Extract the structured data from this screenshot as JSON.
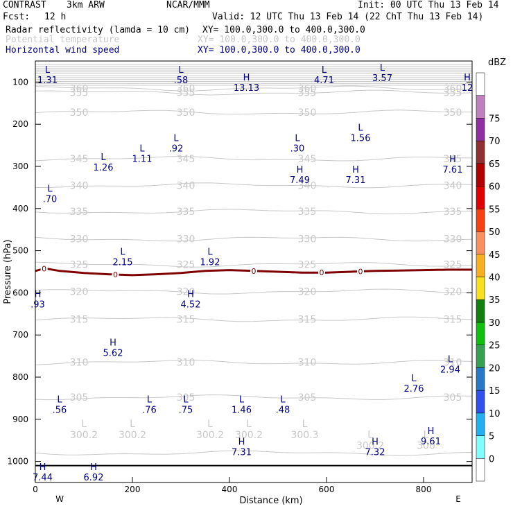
{
  "header": {
    "model": "CONTRAST",
    "resolution": "3km ARW",
    "org": "NCAR/MMM",
    "init": "Init: 00 UTC Thu 13 Feb 14",
    "fcst_label": "Fcst:",
    "fcst_hours": "12 h",
    "valid": "Valid: 12 UTC Thu 13 Feb 14 (22 ChT Thu 13 Feb 14)",
    "field1": "Radar reflectivity (lamda = 10 cm)",
    "field1_xy": "XY= 100.0,300.0 to 400.0,300.0",
    "field2": "Potential temperature",
    "field2_xy": "XY= 100.0,300.0 to 400.0,300.0",
    "field3": "Horizontal wind speed",
    "field3_xy": "XY= 100.0,300.0 to 400.0,300.0"
  },
  "colors": {
    "navy": "#000080",
    "theta": "#c8c8c8",
    "freezing": "#800000",
    "ground": "#000000"
  },
  "chart_data": {
    "type": "cross-section",
    "xlabel": "Distance (km)",
    "ylabel": "Pressure (hPa)",
    "xlim": [
      0,
      900
    ],
    "ylim": [
      1050,
      50
    ],
    "x_ticks": [
      0,
      200,
      400,
      600,
      800
    ],
    "y_ticks": [
      100,
      200,
      300,
      400,
      500,
      600,
      700,
      800,
      900,
      1000
    ],
    "west_label": "W",
    "east_label": "E",
    "theta_contours": [
      {
        "value": 300,
        "pressure": 980
      },
      {
        "value": 305,
        "pressure": 848,
        "label": "305"
      },
      {
        "value": 310,
        "pressure": 765,
        "label": "310"
      },
      {
        "value": 315,
        "pressure": 663,
        "label": "315"
      },
      {
        "value": 320,
        "pressure": 597,
        "label": "320"
      },
      {
        "value": 325,
        "pressure": 533,
        "label": "325"
      },
      {
        "value": 330,
        "pressure": 472,
        "label": "330"
      },
      {
        "value": 335,
        "pressure": 407,
        "label": "335"
      },
      {
        "value": 340,
        "pressure": 345,
        "label": "340"
      },
      {
        "value": 345,
        "pressure": 282,
        "label": "345"
      },
      {
        "value": 350,
        "pressure": 172,
        "label": "350"
      },
      {
        "value": 355,
        "pressure": 125,
        "label": "355"
      },
      {
        "value": 360,
        "pressure": 115,
        "label": "360"
      }
    ],
    "theta_surface_labels": [
      {
        "x": 100,
        "pressure": 935,
        "letter": "L",
        "value": "300.2"
      },
      {
        "x": 200,
        "pressure": 935,
        "letter": "L",
        "value": "300.2"
      },
      {
        "x": 360,
        "pressure": 935,
        "letter": "L",
        "value": "300.2"
      },
      {
        "x": 440,
        "pressure": 935,
        "letter": "L",
        "value": "300.2"
      },
      {
        "x": 555,
        "pressure": 935,
        "letter": "L",
        "value": "300.3"
      },
      {
        "x": 690,
        "pressure": 960,
        "letter": "L",
        "value": "300.2"
      },
      {
        "x": 805,
        "pressure": 960,
        "letter": "L",
        "value": "300"
      }
    ],
    "freezing_level": {
      "label": "0",
      "points": [
        [
          0,
          548
        ],
        [
          20,
          542
        ],
        [
          50,
          548
        ],
        [
          100,
          553
        ],
        [
          150,
          556
        ],
        [
          200,
          558
        ],
        [
          250,
          556
        ],
        [
          300,
          553
        ],
        [
          350,
          548
        ],
        [
          400,
          546
        ],
        [
          450,
          548
        ],
        [
          500,
          550
        ],
        [
          550,
          552
        ],
        [
          600,
          552
        ],
        [
          650,
          550
        ],
        [
          700,
          548
        ],
        [
          750,
          547
        ],
        [
          800,
          546
        ],
        [
          850,
          545
        ],
        [
          900,
          545
        ]
      ],
      "marker_x": [
        18,
        165,
        450,
        590,
        670
      ]
    },
    "ground_pressure": 1010,
    "wind_extrema": [
      {
        "letter": "L",
        "value": "1.31",
        "x": 25,
        "pressure": 78
      },
      {
        "letter": "L",
        "value": ".58",
        "x": 300,
        "pressure": 78
      },
      {
        "letter": "H",
        "value": "13.13",
        "x": 435,
        "pressure": 96
      },
      {
        "letter": "L",
        "value": "4.71",
        "x": 595,
        "pressure": 78
      },
      {
        "letter": "L",
        "value": "3.57",
        "x": 715,
        "pressure": 73
      },
      {
        "letter": "H",
        "value": "12",
        "x": 890,
        "pressure": 96
      },
      {
        "letter": "L",
        "value": ".92",
        "x": 290,
        "pressure": 240
      },
      {
        "letter": "L",
        "value": "1.11",
        "x": 220,
        "pressure": 265
      },
      {
        "letter": "L",
        "value": "1.26",
        "x": 140,
        "pressure": 285
      },
      {
        "letter": "L",
        "value": ".30",
        "x": 540,
        "pressure": 240
      },
      {
        "letter": "L",
        "value": "1.56",
        "x": 670,
        "pressure": 215
      },
      {
        "letter": "H",
        "value": "7.49",
        "x": 545,
        "pressure": 315
      },
      {
        "letter": "H",
        "value": "7.31",
        "x": 660,
        "pressure": 315
      },
      {
        "letter": "H",
        "value": "7.61",
        "x": 860,
        "pressure": 290
      },
      {
        "letter": "L",
        "value": ".70",
        "x": 30,
        "pressure": 360
      },
      {
        "letter": "L",
        "value": "2.15",
        "x": 180,
        "pressure": 510
      },
      {
        "letter": "L",
        "value": "1.92",
        "x": 360,
        "pressure": 510
      },
      {
        "letter": "H",
        "value": ".93",
        "x": 5,
        "pressure": 610
      },
      {
        "letter": "H",
        "value": "4.52",
        "x": 320,
        "pressure": 610
      },
      {
        "letter": "H",
        "value": "5.62",
        "x": 160,
        "pressure": 725
      },
      {
        "letter": "L",
        "value": "2.94",
        "x": 855,
        "pressure": 765
      },
      {
        "letter": "L",
        "value": "2.76",
        "x": 780,
        "pressure": 810
      },
      {
        "letter": "L",
        "value": ".56",
        "x": 50,
        "pressure": 860
      },
      {
        "letter": "L",
        "value": ".76",
        "x": 235,
        "pressure": 860
      },
      {
        "letter": "L",
        "value": ".75",
        "x": 310,
        "pressure": 860
      },
      {
        "letter": "L",
        "value": "1.46",
        "x": 425,
        "pressure": 860
      },
      {
        "letter": "L",
        "value": ".48",
        "x": 510,
        "pressure": 860
      },
      {
        "letter": "H",
        "value": "9.61",
        "x": 815,
        "pressure": 935
      },
      {
        "letter": "H",
        "value": "7.31",
        "x": 425,
        "pressure": 960
      },
      {
        "letter": "H",
        "value": "7.32",
        "x": 700,
        "pressure": 960
      },
      {
        "letter": "H",
        "value": "7.44",
        "x": 15,
        "pressure": 1020
      },
      {
        "letter": "H",
        "value": "6.92",
        "x": 120,
        "pressure": 1020
      }
    ],
    "colorbar": {
      "unit": "dBZ",
      "levels": [
        "0",
        "5",
        "10",
        "15",
        "20",
        "25",
        "30",
        "35",
        "40",
        "45",
        "50",
        "55",
        "60",
        "65",
        "70",
        "75"
      ],
      "colors": [
        "#ffffff",
        "#7fffff",
        "#22b0f0",
        "#3050f0",
        "#2878c8",
        "#38a050",
        "#10c010",
        "#108010",
        "#f8e020",
        "#f8b020",
        "#f89060",
        "#f84010",
        "#e00000",
        "#b00000",
        "#903030",
        "#9030a0",
        "#c080c0",
        "#ffffff"
      ]
    }
  }
}
